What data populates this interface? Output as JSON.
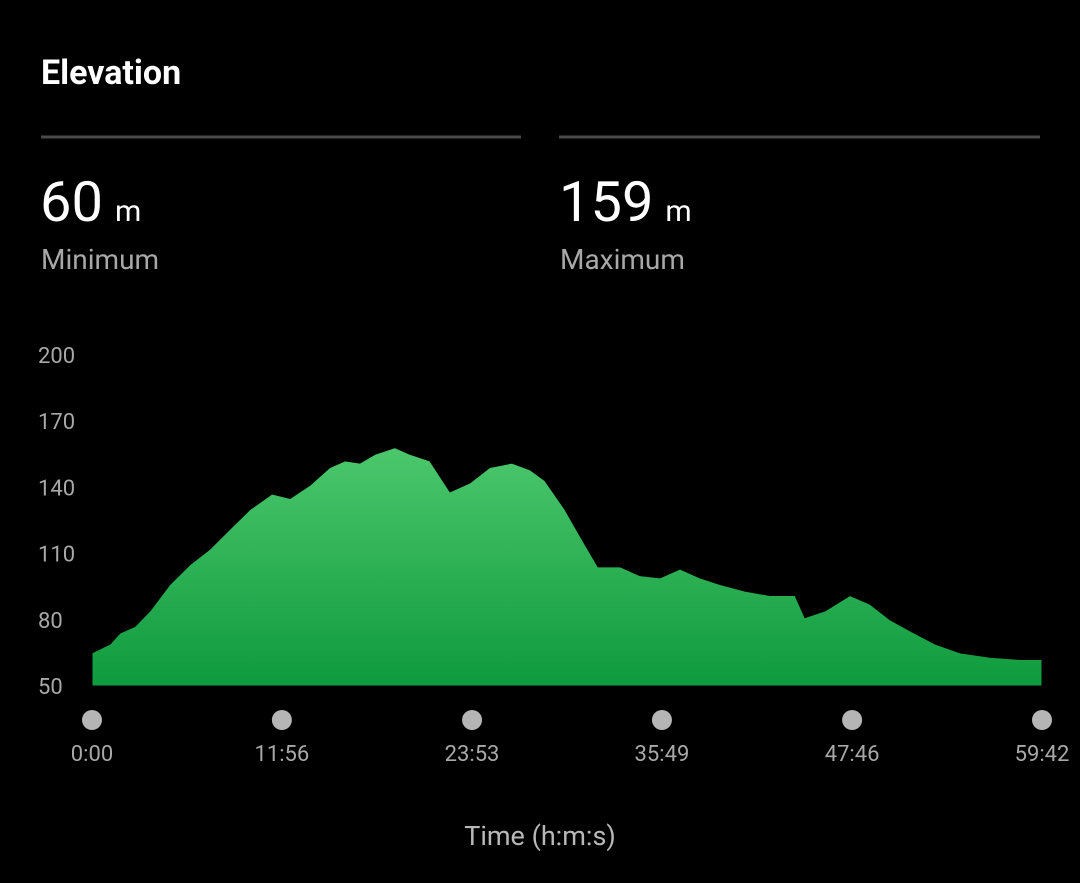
{
  "header": {
    "title": "Elevation"
  },
  "stats": [
    {
      "value": 60,
      "unit": "m",
      "label": "Minimum"
    },
    {
      "value": 159,
      "unit": "m",
      "label": "Maximum"
    }
  ],
  "chart_data": {
    "type": "area",
    "x_label": "Time (h:m:s)",
    "x": [
      0,
      68,
      106,
      162,
      219,
      294,
      370,
      445,
      520,
      596,
      679,
      747,
      822,
      897,
      954,
      1010,
      1067,
      1142,
      1199,
      1274,
      1350,
      1425,
      1500,
      1583,
      1651,
      1708,
      1783,
      1840,
      1908,
      1991,
      2066,
      2142,
      2217,
      2292,
      2368,
      2462,
      2556,
      2651,
      2688,
      2764,
      2858,
      2934,
      3009,
      3084,
      3179,
      3273,
      3386,
      3499,
      3582
    ],
    "y": [
      65,
      69,
      74,
      77,
      84,
      96,
      105,
      112,
      121,
      130,
      137,
      135,
      141,
      149,
      152,
      151,
      155,
      158,
      155,
      152,
      138,
      142,
      149,
      151,
      148,
      143,
      130,
      118,
      104,
      104,
      100,
      99,
      103,
      99,
      96,
      93,
      91,
      91,
      81,
      84,
      91,
      87,
      80,
      75,
      69,
      65,
      63,
      62,
      62
    ],
    "xlim": [
      0,
      3582
    ],
    "xticks": [
      {
        "value": 0,
        "label": "0:00"
      },
      {
        "value": 716,
        "label": "11:56"
      },
      {
        "value": 1433,
        "label": "23:53"
      },
      {
        "value": 2149,
        "label": "35:49"
      },
      {
        "value": 2866,
        "label": "47:46"
      },
      {
        "value": 3582,
        "label": "59:42"
      }
    ],
    "ylim": [
      50,
      200
    ],
    "yticks": [
      50,
      80,
      110,
      140,
      170,
      200
    ],
    "gradient": [
      "#4cc76c",
      "#0f9a3e"
    ]
  }
}
